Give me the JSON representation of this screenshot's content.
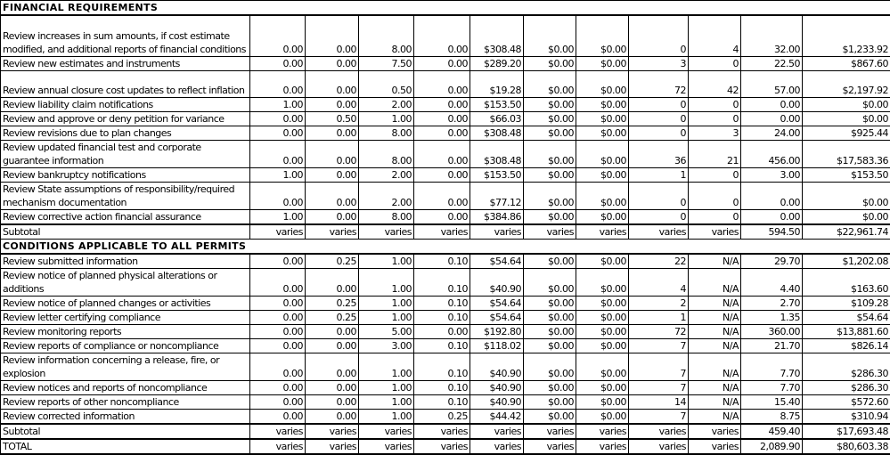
{
  "sections": [
    {
      "title": "FINANCIAL REQUIREMENTS",
      "rows": [
        {
          "desc": "Review increases in sum amounts, if cost estimate modified, and additional reports of financial conditions",
          "lines": 3,
          "values": [
            "0.00",
            "0.00",
            "8.00",
            "0.00",
            "$308.48",
            "$0.00",
            "$0.00",
            "0",
            "4",
            "32.00",
            "$1,233.92"
          ]
        },
        {
          "desc": "Review new estimates and instruments",
          "lines": 1,
          "values": [
            "0.00",
            "0.00",
            "7.50",
            "0.00",
            "$289.20",
            "$0.00",
            "$0.00",
            "3",
            "0",
            "22.50",
            "$867.60"
          ]
        },
        {
          "desc": "Review annual closure cost updates to reflect inflation",
          "lines": 2,
          "values": [
            "0.00",
            "0.00",
            "0.50",
            "0.00",
            "$19.28",
            "$0.00",
            "$0.00",
            "72",
            "42",
            "57.00",
            "$2,197.92"
          ]
        },
        {
          "desc": "Review liability claim notifications",
          "lines": 1,
          "values": [
            "1.00",
            "0.00",
            "2.00",
            "0.00",
            "$153.50",
            "$0.00",
            "$0.00",
            "0",
            "0",
            "0.00",
            "$0.00"
          ]
        },
        {
          "desc": "Review and approve or deny petition for variance",
          "lines": 1,
          "values": [
            "0.00",
            "0.50",
            "1.00",
            "0.00",
            "$66.03",
            "$0.00",
            "$0.00",
            "0",
            "0",
            "0.00",
            "$0.00"
          ]
        },
        {
          "desc": "Review revisions due to plan changes",
          "lines": 1,
          "values": [
            "0.00",
            "0.00",
            "8.00",
            "0.00",
            "$308.48",
            "$0.00",
            "$0.00",
            "0",
            "3",
            "24.00",
            "$925.44"
          ]
        },
        {
          "desc": "Review updated financial test and corporate guarantee information",
          "lines": 2,
          "values": [
            "0.00",
            "0.00",
            "8.00",
            "0.00",
            "$308.48",
            "$0.00",
            "$0.00",
            "36",
            "21",
            "456.00",
            "$17,583.36"
          ]
        },
        {
          "desc": "Review bankruptcy notifications",
          "lines": 1,
          "values": [
            "1.00",
            "0.00",
            "2.00",
            "0.00",
            "$153.50",
            "$0.00",
            "$0.00",
            "1",
            "0",
            "3.00",
            "$153.50"
          ]
        },
        {
          "desc": "Review State assumptions of responsibility/required mechanism documentation",
          "lines": 2,
          "values": [
            "0.00",
            "0.00",
            "2.00",
            "0.00",
            "$77.12",
            "$0.00",
            "$0.00",
            "0",
            "0",
            "0.00",
            "$0.00"
          ]
        },
        {
          "desc": "Review corrective action financial assurance",
          "lines": 1,
          "values": [
            "1.00",
            "0.00",
            "8.00",
            "0.00",
            "$384.86",
            "$0.00",
            "$0.00",
            "0",
            "0",
            "0.00",
            "$0.00"
          ]
        }
      ],
      "subtotal": {
        "label": "Subtotal",
        "values": [
          "varies",
          "varies",
          "varies",
          "varies",
          "varies",
          "varies",
          "varies",
          "varies",
          "varies",
          "594.50",
          "$22,961.74"
        ]
      }
    },
    {
      "title": "CONDITIONS APPLICABLE TO ALL PERMITS",
      "rows": [
        {
          "desc": "Review submitted information",
          "lines": 1,
          "values": [
            "0.00",
            "0.25",
            "1.00",
            "0.10",
            "$54.64",
            "$0.00",
            "$0.00",
            "22",
            "N/A",
            "29.70",
            "$1,202.08"
          ]
        },
        {
          "desc": "Review notice of planned physical alterations or additions",
          "lines": 2,
          "values": [
            "0.00",
            "0.00",
            "1.00",
            "0.10",
            "$40.90",
            "$0.00",
            "$0.00",
            "4",
            "N/A",
            "4.40",
            "$163.60"
          ]
        },
        {
          "desc": "Review notice of planned changes or activities",
          "lines": 1,
          "values": [
            "0.00",
            "0.25",
            "1.00",
            "0.10",
            "$54.64",
            "$0.00",
            "$0.00",
            "2",
            "N/A",
            "2.70",
            "$109.28"
          ]
        },
        {
          "desc": "Review letter certifying compliance",
          "lines": 1,
          "values": [
            "0.00",
            "0.25",
            "1.00",
            "0.10",
            "$54.64",
            "$0.00",
            "$0.00",
            "1",
            "N/A",
            "1.35",
            "$54.64"
          ]
        },
        {
          "desc": "Review monitoring reports",
          "lines": 1,
          "values": [
            "0.00",
            "0.00",
            "5.00",
            "0.00",
            "$192.80",
            "$0.00",
            "$0.00",
            "72",
            "N/A",
            "360.00",
            "$13,881.60"
          ]
        },
        {
          "desc": "Review reports of compliance or noncompliance",
          "lines": 1,
          "values": [
            "0.00",
            "0.00",
            "3.00",
            "0.10",
            "$118.02",
            "$0.00",
            "$0.00",
            "7",
            "N/A",
            "21.70",
            "$826.14"
          ]
        },
        {
          "desc": "Review information concerning a release, fire, or explosion",
          "lines": 2,
          "values": [
            "0.00",
            "0.00",
            "1.00",
            "0.10",
            "$40.90",
            "$0.00",
            "$0.00",
            "7",
            "N/A",
            "7.70",
            "$286.30"
          ]
        },
        {
          "desc": "Review notices and reports of noncompliance",
          "lines": 1,
          "values": [
            "0.00",
            "0.00",
            "1.00",
            "0.10",
            "$40.90",
            "$0.00",
            "$0.00",
            "7",
            "N/A",
            "7.70",
            "$286.30"
          ]
        },
        {
          "desc": "Review reports of other noncompliance",
          "lines": 1,
          "values": [
            "0.00",
            "0.00",
            "1.00",
            "0.10",
            "$40.90",
            "$0.00",
            "$0.00",
            "14",
            "N/A",
            "15.40",
            "$572.60"
          ]
        },
        {
          "desc": "Review corrected information",
          "lines": 1,
          "values": [
            "0.00",
            "0.00",
            "1.00",
            "0.25",
            "$44.42",
            "$0.00",
            "$0.00",
            "7",
            "N/A",
            "8.75",
            "$310.94"
          ]
        }
      ],
      "subtotal": {
        "label": "Subtotal",
        "values": [
          "varies",
          "varies",
          "varies",
          "varies",
          "varies",
          "varies",
          "varies",
          "varies",
          "varies",
          "459.40",
          "$17,693.48"
        ]
      }
    }
  ],
  "total": {
    "label": "TOTAL",
    "values": [
      "varies",
      "varies",
      "varies",
      "varies",
      "varies",
      "varies",
      "varies",
      "varies",
      "varies",
      "2,089.90",
      "$80,603.38"
    ]
  }
}
